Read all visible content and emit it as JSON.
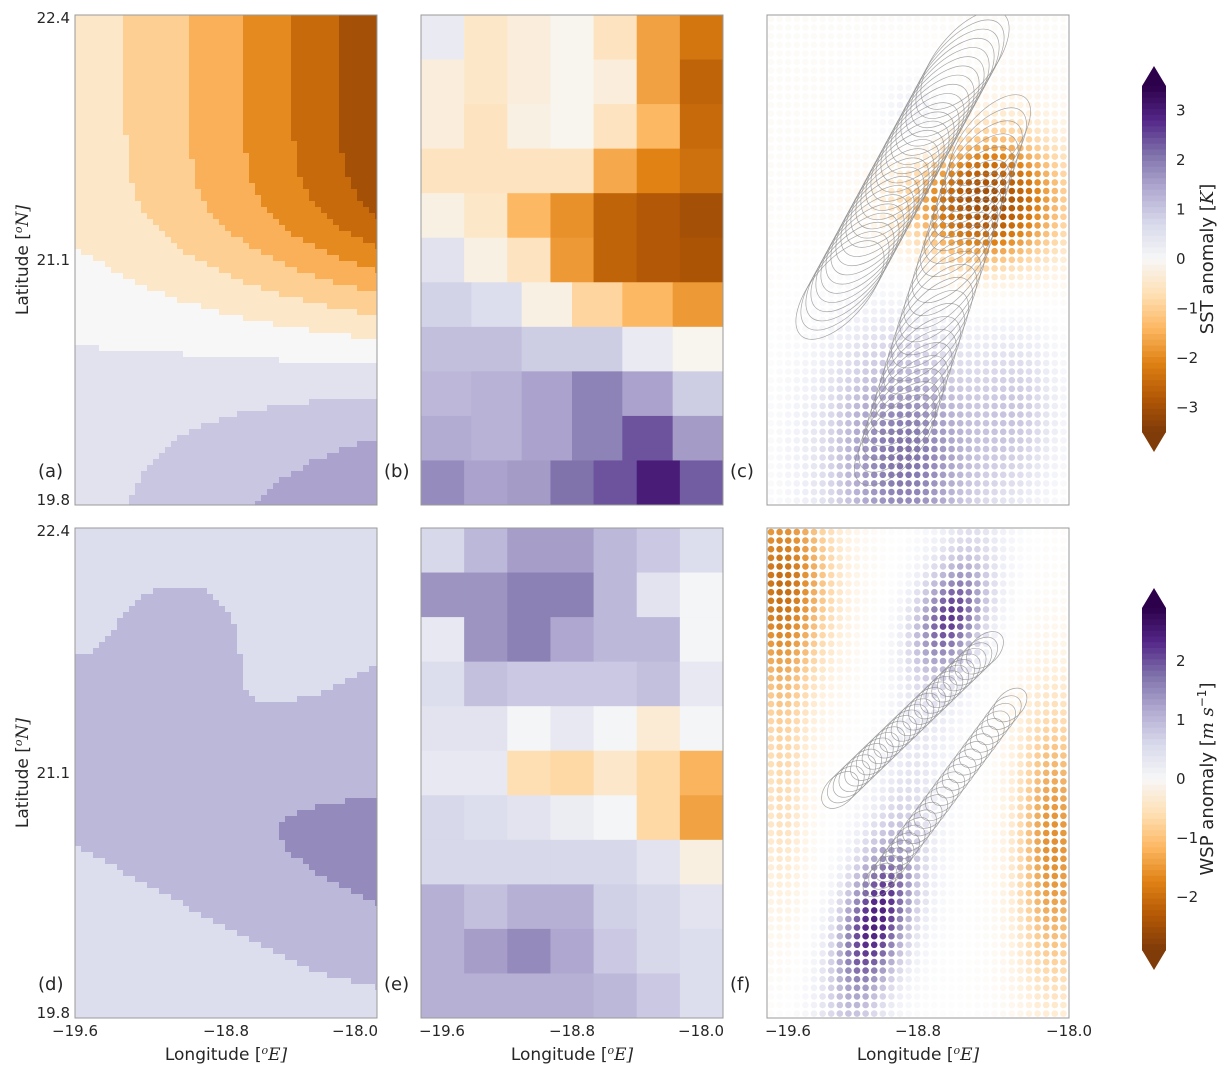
{
  "chart_data": {
    "type": "heatmap",
    "colormap": "PuOr",
    "colormap_stops": [
      "#7f3b08",
      "#b35806",
      "#e08214",
      "#fdb863",
      "#fee0b6",
      "#f7f7f7",
      "#d8daeb",
      "#b2abd2",
      "#8073ac",
      "#542788",
      "#2d004b"
    ],
    "xlim": [
      -19.6,
      -18.0
    ],
    "ylim": [
      19.8,
      22.4
    ],
    "x_ticks": [
      "−19.6",
      "−18.8",
      "−18.0"
    ],
    "y_ticks": [
      "22.4",
      "21.1",
      "19.8"
    ],
    "xlabel_text": "Longitude [",
    "xlabel_unit": "o",
    "xlabel_tail": "E]",
    "ylabel_text": "Latitude [",
    "ylabel_unit": "o",
    "ylabel_tail": "N]",
    "rows": [
      {
        "colorbar": {
          "label_text": "SST anomaly [",
          "label_unit": "K",
          "label_tail": "]",
          "vmin": -3.5,
          "vmax": 3.5,
          "ticks": [
            3,
            2,
            1,
            0,
            -1,
            -2,
            -3
          ],
          "tick_labels": [
            "3",
            "2",
            "1",
            "0",
            "−1",
            "−2",
            "−3"
          ]
        },
        "panels": [
          {
            "label": "(a)",
            "kind": "contour"
          },
          {
            "label": "(b)",
            "kind": "grid",
            "values": [
              [
                0.3,
                -0.5,
                -0.3,
                -0.1,
                -0.6,
                -1.7,
                -2.3
              ],
              [
                -0.3,
                -0.5,
                -0.3,
                -0.1,
                -0.3,
                -1.7,
                -2.6
              ],
              [
                -0.3,
                -0.6,
                -0.2,
                -0.1,
                -0.6,
                -1.4,
                -2.5
              ],
              [
                -0.6,
                -0.6,
                -0.6,
                -0.6,
                -1.6,
                -2.1,
                -2.4
              ],
              [
                -0.2,
                -0.5,
                -1.4,
                -1.9,
                -2.6,
                -2.8,
                -3.0
              ],
              [
                0.5,
                -0.2,
                -0.6,
                -1.8,
                -2.6,
                -2.8,
                -2.9
              ],
              [
                0.8,
                0.6,
                -0.2,
                -0.9,
                -1.4,
                -1.8
              ],
              [
                1.1,
                1.1,
                0.9,
                0.9,
                0.3,
                -0.1
              ],
              [
                1.2,
                1.3,
                1.5,
                1.9,
                1.5,
                0.9
              ],
              [
                1.4,
                1.3,
                1.5,
                1.9,
                2.4,
                1.6
              ],
              [
                1.8,
                1.5,
                1.6,
                2.1,
                2.4,
                3.0,
                2.3
              ]
            ]
          },
          {
            "label": "(c)",
            "kind": "dots"
          }
        ]
      },
      {
        "colorbar": {
          "label_text": "WSP anomaly [",
          "label_unit": "m s",
          "label_sup": "−1",
          "label_tail": "]",
          "vmin": -2.9,
          "vmax": 2.9,
          "ticks": [
            2,
            1,
            0,
            -1,
            -2
          ],
          "tick_labels": [
            "2",
            "1",
            "0",
            "−1",
            "−2"
          ]
        },
        "panels": [
          {
            "label": "(d)",
            "kind": "contour"
          },
          {
            "label": "(e)",
            "kind": "grid",
            "values": [
              [
                0.6,
                1.0,
                1.3,
                1.3,
                1.0,
                0.8,
                0.5
              ],
              [
                1.4,
                1.4,
                1.6,
                1.6,
                1.0,
                0.4,
                0.05
              ],
              [
                0.3,
                1.4,
                1.6,
                1.2,
                1.0,
                1.0,
                0.05
              ],
              [
                0.5,
                0.9,
                0.8,
                0.8,
                0.8,
                0.9,
                0.3
              ],
              [
                0.4,
                0.4,
                0.05,
                0.3,
                0.05,
                -0.3,
                0.05
              ],
              [
                0.3,
                0.3,
                -0.6,
                -0.7,
                -0.4,
                -0.7,
                -1.2
              ],
              [
                0.6,
                0.5,
                0.4,
                0.2,
                0.05,
                -0.7,
                -1.4
              ],
              [
                0.6,
                0.6,
                0.6,
                0.6,
                0.6,
                0.4,
                -0.2
              ],
              [
                1.1,
                0.9,
                1.1,
                1.1,
                0.7,
                0.6,
                0.4
              ],
              [
                1.1,
                1.3,
                1.5,
                1.2,
                0.8,
                0.6,
                0.5
              ],
              [
                1.1,
                1.1,
                1.1,
                1.1,
                1.0,
                0.8,
                0.5
              ]
            ]
          },
          {
            "label": "(f)",
            "kind": "dots"
          }
        ]
      }
    ]
  }
}
